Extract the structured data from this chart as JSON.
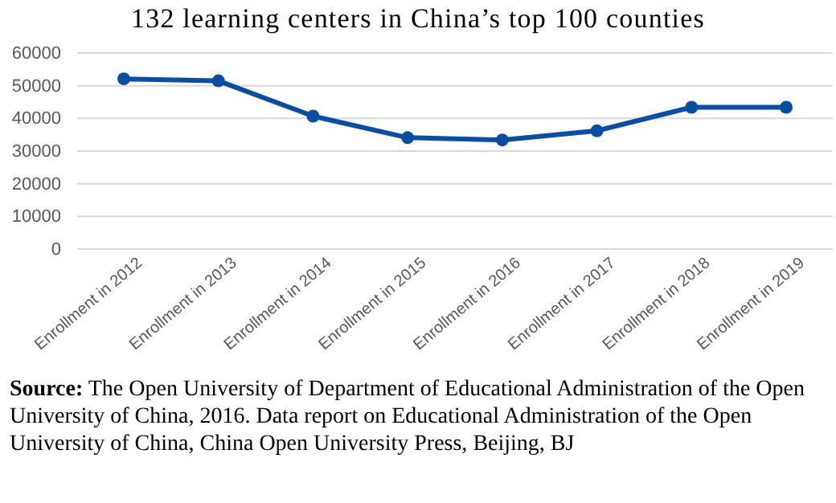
{
  "chart_data": {
    "type": "line",
    "title": "132 learning centers in China’s top 100 counties",
    "categories": [
      "Enrollment in 2012",
      "Enrollment in 2013",
      "Enrollment in 2014",
      "Enrollment in 2015",
      "Enrollment in 2016",
      "Enrollment in 2017",
      "Enrollment in 2018",
      "Enrollment in 2019"
    ],
    "series": [
      {
        "color": "#0a4ea3",
        "values": [
          52100,
          51500,
          40700,
          34100,
          33400,
          36200,
          43400,
          43400
        ]
      }
    ],
    "ylim": [
      0,
      60000
    ],
    "yticks": [
      0,
      10000,
      20000,
      30000,
      40000,
      50000,
      60000
    ],
    "grid": "y",
    "marker": "circle",
    "line_style": "solid",
    "annotations": [
      "Source: The Open University of Department of Educational Administration of the Open University of China, 2016. Data report on Educational Administration of the Open University of China, China Open University Press, Beijing, BJ"
    ]
  }
}
